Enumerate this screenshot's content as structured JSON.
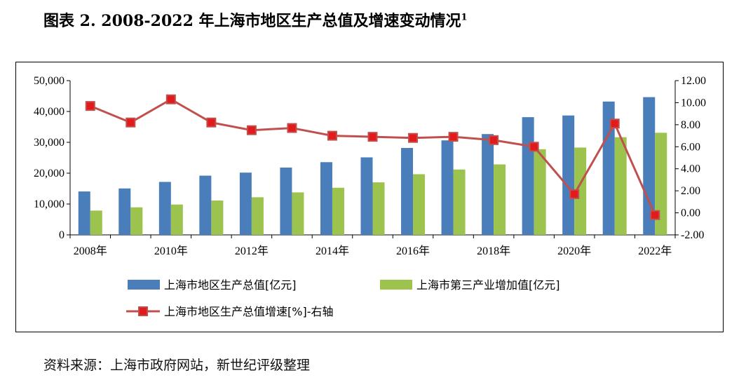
{
  "title": {
    "main": "图表 2. 2008-2022 年上海市地区生产总值及增速变动情况",
    "footnote_mark": "1"
  },
  "source": "资料来源：上海市政府网站，新世纪评级整理",
  "colors": {
    "gdp": "#4a7ebb",
    "tertiary": "#9bc34e",
    "growth_line": "#c0504d",
    "growth_marker": "#e31a1c"
  },
  "chart_data": {
    "type": "bar+line",
    "years": [
      2008,
      2009,
      2010,
      2011,
      2012,
      2013,
      2014,
      2015,
      2016,
      2017,
      2018,
      2019,
      2020,
      2021,
      2022
    ],
    "x_tick_labels": [
      "2008年",
      "2010年",
      "2012年",
      "2014年",
      "2016年",
      "2018年",
      "2020年",
      "2022年"
    ],
    "x_tick_years": [
      2008,
      2010,
      2012,
      2014,
      2016,
      2018,
      2020,
      2022
    ],
    "left_axis": {
      "ylim": [
        0,
        50000
      ],
      "ticks": [
        0,
        10000,
        20000,
        30000,
        40000,
        50000
      ],
      "tick_labels": [
        "0",
        "10,000",
        "20,000",
        "30,000",
        "40,000",
        "50,000"
      ]
    },
    "right_axis": {
      "ylim": [
        -2,
        12
      ],
      "ticks": [
        -2,
        0,
        2,
        4,
        6,
        8,
        10,
        12
      ],
      "tick_labels": [
        "-2.00",
        "0.00",
        "2.00",
        "4.00",
        "6.00",
        "8.00",
        "10.00",
        "12.00"
      ]
    },
    "series": [
      {
        "name": "上海市地区生产总值[亿元]",
        "type": "bar",
        "axis": "left",
        "values": [
          14070,
          15046,
          17166,
          19196,
          20182,
          21818,
          23568,
          25123,
          28179,
          30633,
          32680,
          38155,
          38701,
          43215,
          44653
        ]
      },
      {
        "name": "上海市第三产业增加值[亿元]",
        "type": "bar",
        "axis": "left",
        "values": [
          7872,
          8930,
          9834,
          11143,
          12199,
          13766,
          15276,
          17023,
          19662,
          21192,
          22843,
          27752,
          28307,
          31666,
          33097
        ]
      },
      {
        "name": "上海市地区生产总值增速[%]-右轴",
        "type": "line",
        "axis": "right",
        "values": [
          9.7,
          8.2,
          10.3,
          8.2,
          7.5,
          7.7,
          7.0,
          6.9,
          6.8,
          6.9,
          6.6,
          6.0,
          1.7,
          8.1,
          -0.2
        ]
      }
    ]
  }
}
